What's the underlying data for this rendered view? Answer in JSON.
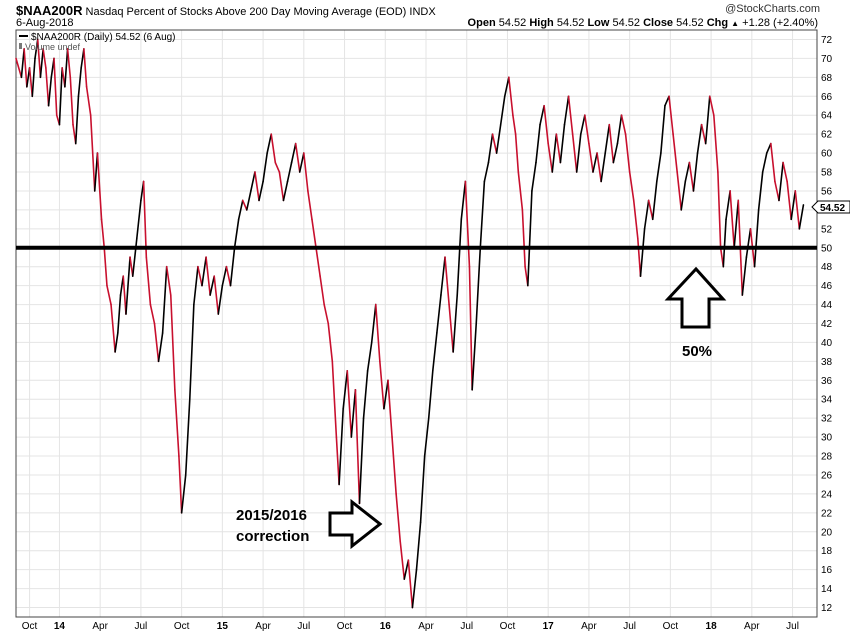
{
  "header": {
    "symbol": "$NAA200R",
    "description": "Nasdaq Percent of Stocks Above 200 Day Moving Average (EOD)",
    "exchange": "INDX",
    "date": "6-Aug-2018",
    "logo": "@StockCharts.com",
    "open_label": "Open",
    "open": "54.52",
    "high_label": "High",
    "high": "54.52",
    "low_label": "Low",
    "low": "54.52",
    "close_label": "Close",
    "close": "54.52",
    "chg_label": "Chg",
    "chg": "+1.28 (+2.40%)",
    "chg_arrow": "▲"
  },
  "legend": {
    "series": "$NAA200R (Daily) 54.52 (6 Aug)",
    "volume": "Volume undef"
  },
  "annotations": {
    "correction_line1": "2015/2016",
    "correction_line2": "correction",
    "fifty_label": "50%"
  },
  "colors": {
    "up": "#000000",
    "down": "#c8102e",
    "reference": "#000000",
    "last_badge": "#ffffff"
  },
  "chart_data": {
    "type": "line",
    "title": "Nasdaq Percent of Stocks Above 200 Day Moving Average (EOD)",
    "ylim": [
      11,
      73
    ],
    "y_ticks": [
      12,
      14,
      16,
      18,
      20,
      22,
      24,
      26,
      28,
      30,
      32,
      34,
      36,
      38,
      40,
      42,
      44,
      46,
      48,
      50,
      52,
      54,
      56,
      58,
      60,
      62,
      64,
      66,
      68,
      70,
      72
    ],
    "x_ticks": [
      {
        "label": "Oct",
        "t": 0.8,
        "bold": false
      },
      {
        "label": "14",
        "t": 3.0,
        "bold": true
      },
      {
        "label": "Apr",
        "t": 6.0,
        "bold": false
      },
      {
        "label": "Jul",
        "t": 9.0,
        "bold": false
      },
      {
        "label": "Oct",
        "t": 12.0,
        "bold": false
      },
      {
        "label": "15",
        "t": 15.0,
        "bold": true
      },
      {
        "label": "Apr",
        "t": 18.0,
        "bold": false
      },
      {
        "label": "Jul",
        "t": 21.0,
        "bold": false
      },
      {
        "label": "Oct",
        "t": 24.0,
        "bold": false
      },
      {
        "label": "16",
        "t": 27.0,
        "bold": true
      },
      {
        "label": "Apr",
        "t": 30.0,
        "bold": false
      },
      {
        "label": "Jul",
        "t": 33.0,
        "bold": false
      },
      {
        "label": "Oct",
        "t": 36.0,
        "bold": false
      },
      {
        "label": "17",
        "t": 39.0,
        "bold": true
      },
      {
        "label": "Apr",
        "t": 42.0,
        "bold": false
      },
      {
        "label": "Jul",
        "t": 45.0,
        "bold": false
      },
      {
        "label": "Oct",
        "t": 48.0,
        "bold": false
      },
      {
        "label": "18",
        "t": 51.0,
        "bold": true
      },
      {
        "label": "Apr",
        "t": 54.0,
        "bold": false
      },
      {
        "label": "Jul",
        "t": 57.0,
        "bold": false
      }
    ],
    "xlim": [
      -0.2,
      58.8
    ],
    "reference_line": 50,
    "last_value": "54.52",
    "series": [
      {
        "name": "$NAA200R (Daily)",
        "points": [
          [
            -0.2,
            70
          ],
          [
            0.2,
            68
          ],
          [
            0.4,
            71
          ],
          [
            0.6,
            67
          ],
          [
            0.8,
            69
          ],
          [
            1.0,
            66
          ],
          [
            1.2,
            70
          ],
          [
            1.4,
            72
          ],
          [
            1.6,
            68
          ],
          [
            1.8,
            71
          ],
          [
            2.0,
            69
          ],
          [
            2.2,
            65
          ],
          [
            2.4,
            68
          ],
          [
            2.6,
            70
          ],
          [
            2.8,
            64
          ],
          [
            3.0,
            63
          ],
          [
            3.2,
            69
          ],
          [
            3.4,
            67
          ],
          [
            3.6,
            71
          ],
          [
            3.8,
            68
          ],
          [
            4.0,
            63
          ],
          [
            4.2,
            61
          ],
          [
            4.4,
            66
          ],
          [
            4.6,
            69
          ],
          [
            4.8,
            71
          ],
          [
            5.0,
            67
          ],
          [
            5.3,
            64
          ],
          [
            5.6,
            56
          ],
          [
            5.8,
            60
          ],
          [
            6.1,
            53
          ],
          [
            6.3,
            50
          ],
          [
            6.5,
            46
          ],
          [
            6.8,
            44
          ],
          [
            7.1,
            39
          ],
          [
            7.3,
            41
          ],
          [
            7.5,
            45
          ],
          [
            7.7,
            47
          ],
          [
            7.9,
            43
          ],
          [
            8.2,
            49
          ],
          [
            8.4,
            47
          ],
          [
            8.7,
            51
          ],
          [
            9.0,
            55
          ],
          [
            9.2,
            57
          ],
          [
            9.4,
            49
          ],
          [
            9.7,
            44
          ],
          [
            10.0,
            42
          ],
          [
            10.3,
            38
          ],
          [
            10.6,
            41
          ],
          [
            10.9,
            48
          ],
          [
            11.2,
            45
          ],
          [
            11.5,
            35
          ],
          [
            11.8,
            28
          ],
          [
            12.0,
            22
          ],
          [
            12.3,
            26
          ],
          [
            12.6,
            34
          ],
          [
            12.9,
            44
          ],
          [
            13.2,
            48
          ],
          [
            13.5,
            46
          ],
          [
            13.8,
            49
          ],
          [
            14.1,
            45
          ],
          [
            14.4,
            47
          ],
          [
            14.7,
            43
          ],
          [
            15.0,
            46
          ],
          [
            15.3,
            48
          ],
          [
            15.6,
            46
          ],
          [
            15.9,
            50
          ],
          [
            16.2,
            53
          ],
          [
            16.5,
            55
          ],
          [
            16.8,
            54
          ],
          [
            17.1,
            56
          ],
          [
            17.4,
            58
          ],
          [
            17.7,
            55
          ],
          [
            18.0,
            57
          ],
          [
            18.3,
            60
          ],
          [
            18.6,
            62
          ],
          [
            18.9,
            59
          ],
          [
            19.2,
            58
          ],
          [
            19.5,
            55
          ],
          [
            19.8,
            57
          ],
          [
            20.1,
            59
          ],
          [
            20.4,
            61
          ],
          [
            20.7,
            58
          ],
          [
            21.0,
            60
          ],
          [
            21.3,
            56
          ],
          [
            21.6,
            53
          ],
          [
            21.9,
            50
          ],
          [
            22.2,
            47
          ],
          [
            22.5,
            44
          ],
          [
            22.8,
            42
          ],
          [
            23.1,
            38
          ],
          [
            23.4,
            30
          ],
          [
            23.6,
            25
          ],
          [
            23.9,
            33
          ],
          [
            24.2,
            37
          ],
          [
            24.5,
            30
          ],
          [
            24.8,
            35
          ],
          [
            25.1,
            23
          ],
          [
            25.4,
            32
          ],
          [
            25.7,
            37
          ],
          [
            26.0,
            40
          ],
          [
            26.3,
            44
          ],
          [
            26.6,
            38
          ],
          [
            26.9,
            33
          ],
          [
            27.2,
            36
          ],
          [
            27.5,
            30
          ],
          [
            27.8,
            24
          ],
          [
            28.1,
            19
          ],
          [
            28.4,
            15
          ],
          [
            28.7,
            17
          ],
          [
            29.0,
            12
          ],
          [
            29.3,
            16
          ],
          [
            29.6,
            21
          ],
          [
            29.9,
            28
          ],
          [
            30.2,
            32
          ],
          [
            30.5,
            37
          ],
          [
            30.8,
            41
          ],
          [
            31.1,
            45
          ],
          [
            31.4,
            49
          ],
          [
            31.7,
            44
          ],
          [
            32.0,
            39
          ],
          [
            32.3,
            45
          ],
          [
            32.6,
            53
          ],
          [
            32.9,
            57
          ],
          [
            33.2,
            48
          ],
          [
            33.4,
            35
          ],
          [
            33.7,
            42
          ],
          [
            34.0,
            50
          ],
          [
            34.3,
            57
          ],
          [
            34.6,
            59
          ],
          [
            34.9,
            62
          ],
          [
            35.2,
            60
          ],
          [
            35.5,
            63
          ],
          [
            35.8,
            66
          ],
          [
            36.1,
            68
          ],
          [
            36.4,
            64
          ],
          [
            36.6,
            62
          ],
          [
            36.8,
            58
          ],
          [
            37.1,
            54
          ],
          [
            37.3,
            48
          ],
          [
            37.5,
            46
          ],
          [
            37.8,
            56
          ],
          [
            38.1,
            59
          ],
          [
            38.4,
            63
          ],
          [
            38.7,
            65
          ],
          [
            39.0,
            61
          ],
          [
            39.3,
            58
          ],
          [
            39.6,
            62
          ],
          [
            39.9,
            59
          ],
          [
            40.2,
            63
          ],
          [
            40.5,
            66
          ],
          [
            40.8,
            62
          ],
          [
            41.1,
            58
          ],
          [
            41.4,
            62
          ],
          [
            41.7,
            64
          ],
          [
            42.0,
            61
          ],
          [
            42.3,
            58
          ],
          [
            42.6,
            60
          ],
          [
            42.9,
            57
          ],
          [
            43.2,
            60
          ],
          [
            43.5,
            63
          ],
          [
            43.8,
            59
          ],
          [
            44.1,
            61
          ],
          [
            44.4,
            64
          ],
          [
            44.7,
            62
          ],
          [
            45.0,
            58
          ],
          [
            45.3,
            55
          ],
          [
            45.6,
            51
          ],
          [
            45.8,
            47
          ],
          [
            46.1,
            52
          ],
          [
            46.4,
            55
          ],
          [
            46.7,
            53
          ],
          [
            47.0,
            57
          ],
          [
            47.3,
            60
          ],
          [
            47.6,
            65
          ],
          [
            47.9,
            66
          ],
          [
            48.2,
            62
          ],
          [
            48.5,
            58
          ],
          [
            48.8,
            54
          ],
          [
            49.1,
            57
          ],
          [
            49.4,
            59
          ],
          [
            49.7,
            56
          ],
          [
            50.0,
            60
          ],
          [
            50.3,
            63
          ],
          [
            50.6,
            61
          ],
          [
            50.9,
            66
          ],
          [
            51.2,
            64
          ],
          [
            51.5,
            58
          ],
          [
            51.7,
            50
          ],
          [
            51.9,
            48
          ],
          [
            52.1,
            53
          ],
          [
            52.4,
            56
          ],
          [
            52.7,
            50
          ],
          [
            53.0,
            55
          ],
          [
            53.3,
            45
          ],
          [
            53.6,
            49
          ],
          [
            53.9,
            52
          ],
          [
            54.2,
            48
          ],
          [
            54.5,
            54
          ],
          [
            54.8,
            58
          ],
          [
            55.1,
            60
          ],
          [
            55.4,
            61
          ],
          [
            55.7,
            57
          ],
          [
            56.0,
            55
          ],
          [
            56.3,
            59
          ],
          [
            56.6,
            57
          ],
          [
            56.9,
            53
          ],
          [
            57.2,
            56
          ],
          [
            57.5,
            52
          ],
          [
            57.8,
            54.52
          ]
        ]
      }
    ]
  }
}
